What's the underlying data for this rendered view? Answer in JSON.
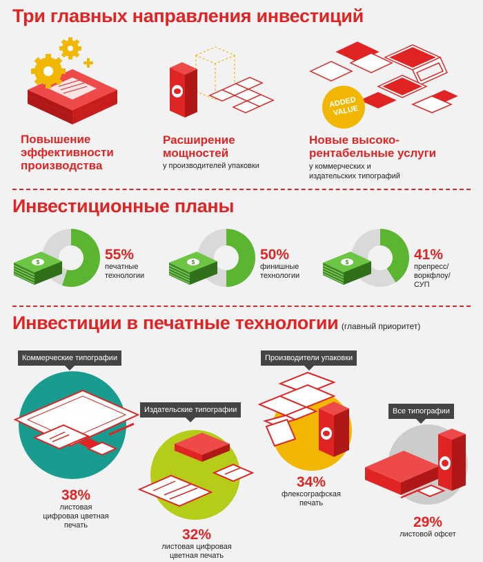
{
  "sections": {
    "s1": {
      "title": "Три главных направления инвестиций"
    },
    "s2": {
      "title": "Инвестиционные планы"
    },
    "s3": {
      "title": "Инвестиции в печатные технологии",
      "note": "(главный приоритет)"
    }
  },
  "directions": [
    {
      "title": "Повышение эффективности производства",
      "lines": [
        "Повышение",
        "эффективности",
        "производства"
      ],
      "subtitle": ""
    },
    {
      "title": "Расширение мощностей",
      "lines": [
        "Расширение",
        "мощностей"
      ],
      "subtitle": "у производителей упаковки"
    },
    {
      "title": "Новые высоко-рентабельные услуги",
      "lines": [
        "Новые высоко-",
        "рентабельные услуги"
      ],
      "subtitle": "у коммерческих и издательских типографий"
    }
  ],
  "badge": {
    "line1": "ADDED",
    "line2": "VALUE"
  },
  "plans": [
    {
      "percent": "55%",
      "value": 55,
      "label_lines": [
        "печатные",
        "технологии"
      ]
    },
    {
      "percent": "50%",
      "value": 50,
      "label_lines": [
        "финишные",
        "технологии"
      ]
    },
    {
      "percent": "41%",
      "value": 41,
      "label_lines": [
        "препресс/",
        "воркфлоу/",
        "СУП"
      ]
    }
  ],
  "tech": [
    {
      "segment": "Коммерческие типографии",
      "percent": "38%",
      "label_lines": [
        "листовая",
        "цифровая цветная",
        "печать"
      ],
      "color": "#1a9b8f"
    },
    {
      "segment": "Издательские типографии",
      "percent": "32%",
      "label_lines": [
        "листовая цифровая",
        "цветная печать"
      ],
      "color": "#b5cc18"
    },
    {
      "segment": "Производители упаковки",
      "percent": "34%",
      "label_lines": [
        "флексографская",
        "печать"
      ],
      "color": "#f2b705"
    },
    {
      "segment": "Все типографии",
      "percent": "29%",
      "label_lines": [
        "листовой офсет"
      ],
      "color": "#cccccc"
    }
  ],
  "colors": {
    "accent": "#e02424",
    "green": "#5bb531",
    "gray": "#d9d9d9"
  },
  "icons": [
    "gears-icon",
    "box-icon",
    "devices-icon",
    "money-icon",
    "paper-icon",
    "book-icon",
    "package-icon"
  ]
}
